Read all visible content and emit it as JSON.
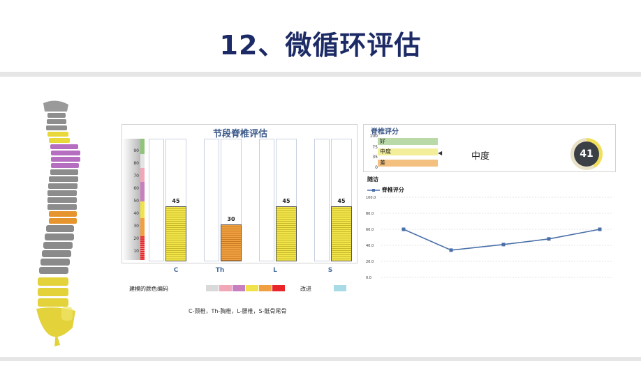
{
  "page": {
    "title": "12、微循环评估"
  },
  "segment_panel": {
    "title": "节段脊椎评估",
    "scale_ticks": [
      "90",
      "80",
      "70",
      "60",
      "50",
      "40",
      "30",
      "20",
      "10"
    ],
    "categories": [
      "C",
      "Th",
      "L",
      "S"
    ],
    "value_labels": [
      "45",
      "30",
      "45",
      "45"
    ]
  },
  "legend": {
    "modeling_label": "建模的颜色编码",
    "improve_label": "改进",
    "colors": [
      "#d9d9d9",
      "#f2a7b8",
      "#c77fbf",
      "#f0e24a",
      "#f0a040",
      "#e8262a"
    ],
    "improve_color": "#a9dbe6"
  },
  "footnote": "C-颈椎，Th-胸椎，L-腰椎，S-骶骨尾骨",
  "score_panel": {
    "title": "脊椎评分",
    "axis": [
      "100",
      "75",
      "35",
      "0"
    ],
    "bands": [
      {
        "label": "好",
        "color": "#b9d9a9"
      },
      {
        "label": "中度",
        "color": "#f3ee9a"
      },
      {
        "label": "差",
        "color": "#f3c07f"
      }
    ],
    "marker": "◀",
    "level": "中度",
    "score": "41"
  },
  "follow_up": {
    "title": "随访",
    "legend": "脊椎评分",
    "y_ticks": [
      "100.0",
      "80.0",
      "60.0",
      "40.0",
      "20.0",
      "0.0"
    ]
  },
  "chart_data": [
    {
      "type": "bar",
      "title": "节段脊椎评估",
      "categories": [
        "C",
        "Th",
        "L",
        "S"
      ],
      "values": [
        45,
        30,
        45,
        45
      ],
      "ylim": [
        0,
        100
      ],
      "colors": [
        "#f1e54a",
        "#f0a040",
        "#f1e54a",
        "#f1e54a"
      ]
    },
    {
      "type": "line",
      "title": "随访",
      "series": [
        {
          "name": "脊椎评分",
          "values": [
            60,
            34,
            41,
            48,
            60
          ]
        }
      ],
      "ylim": [
        0,
        100
      ],
      "color": "#4a6fa8"
    }
  ]
}
